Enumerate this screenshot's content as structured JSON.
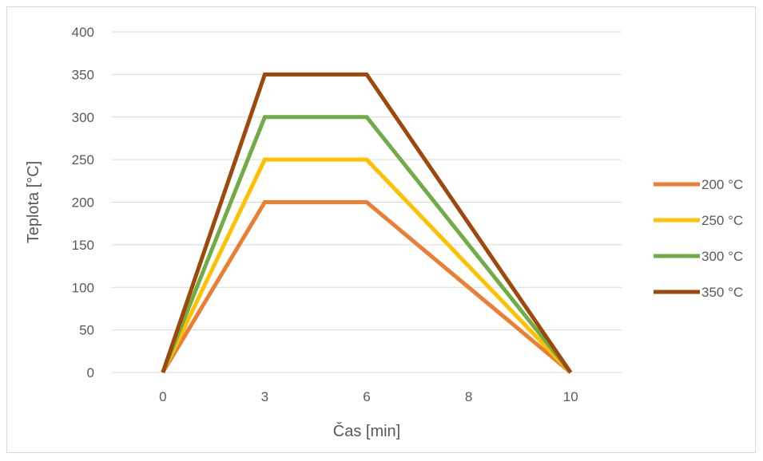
{
  "chart_data": {
    "type": "line",
    "title": "",
    "xlabel": "Čas [min]",
    "ylabel": "Teplota [°C]",
    "categories": [
      "0",
      "3",
      "6",
      "8",
      "10"
    ],
    "ylim": [
      0,
      400
    ],
    "yticks": [
      0,
      50,
      100,
      150,
      200,
      250,
      300,
      350,
      400
    ],
    "grid": true,
    "legend_position": "right",
    "series": [
      {
        "name": "200 °C",
        "color": "#ED7D31",
        "values": [
          0,
          200,
          200,
          100,
          0
        ]
      },
      {
        "name": "250 °C",
        "color": "#FFC000",
        "values": [
          0,
          250,
          250,
          125,
          0
        ]
      },
      {
        "name": "300 °C",
        "color": "#70AD47",
        "values": [
          0,
          300,
          300,
          150,
          0
        ]
      },
      {
        "name": "350 °C",
        "color": "#9E480E",
        "values": [
          0,
          350,
          350,
          175,
          0
        ]
      }
    ]
  }
}
